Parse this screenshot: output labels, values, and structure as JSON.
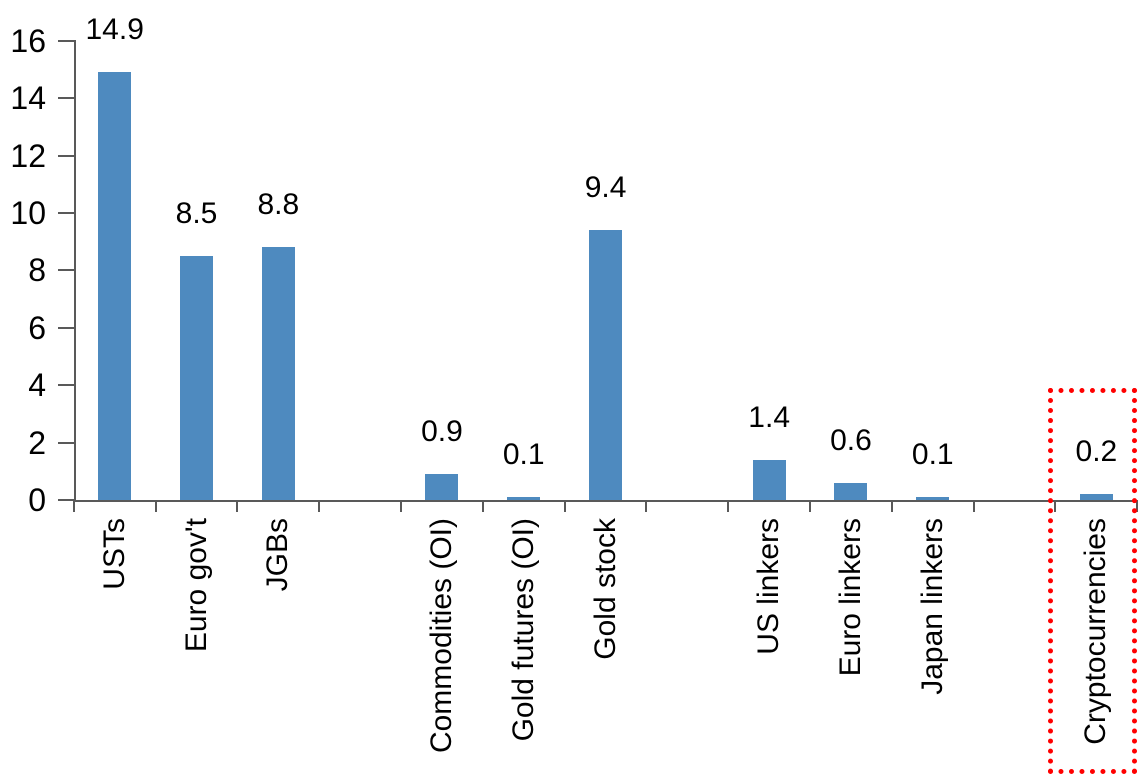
{
  "chart_data": {
    "type": "bar",
    "title": "",
    "xlabel": "",
    "ylabel": "",
    "categories": [
      "USTs",
      "Euro gov't",
      "JGBs",
      "",
      "Commodities (OI)",
      "Gold futures (OI)",
      "Gold stock",
      "",
      "US linkers",
      "Euro linkers",
      "Japan linkers",
      "",
      "Cryptocurrencies"
    ],
    "values": [
      14.9,
      8.5,
      8.8,
      null,
      0.9,
      0.1,
      9.4,
      null,
      1.4,
      0.6,
      0.1,
      null,
      0.2
    ],
    "data_labels": [
      "14.9",
      "8.5",
      "8.8",
      null,
      "0.9",
      "0.1",
      "9.4",
      null,
      "1.4",
      "0.6",
      "0.1",
      null,
      "0.2"
    ],
    "yticks": [
      0,
      2,
      4,
      6,
      8,
      10,
      12,
      14,
      16
    ],
    "ylim": [
      0,
      16
    ],
    "grid": false,
    "legend": false,
    "bar_color": "#4E8ABF",
    "axis_color": "#595959",
    "text_color": "#000000",
    "highlight": {
      "category": "Cryptocurrencies",
      "box_color": "#FF0000",
      "box_style": "dotted"
    }
  }
}
